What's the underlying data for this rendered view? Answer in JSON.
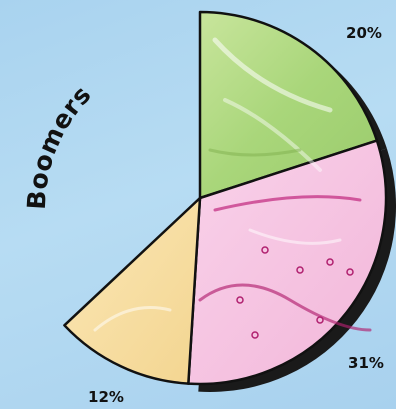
{
  "chart_data": {
    "type": "pie",
    "title": "Boomers",
    "categories": [
      "green",
      "pink",
      "yellow"
    ],
    "values": [
      20,
      31,
      12
    ],
    "labels": [
      "20%",
      "31%",
      "12%"
    ],
    "total_shown_of": 100,
    "colors": {
      "green": "#b7dc8a",
      "pink": "#f6c6e2",
      "yellow": "#f8dfa3",
      "shadow": "#1a1a1a",
      "outline": "#111111"
    }
  }
}
